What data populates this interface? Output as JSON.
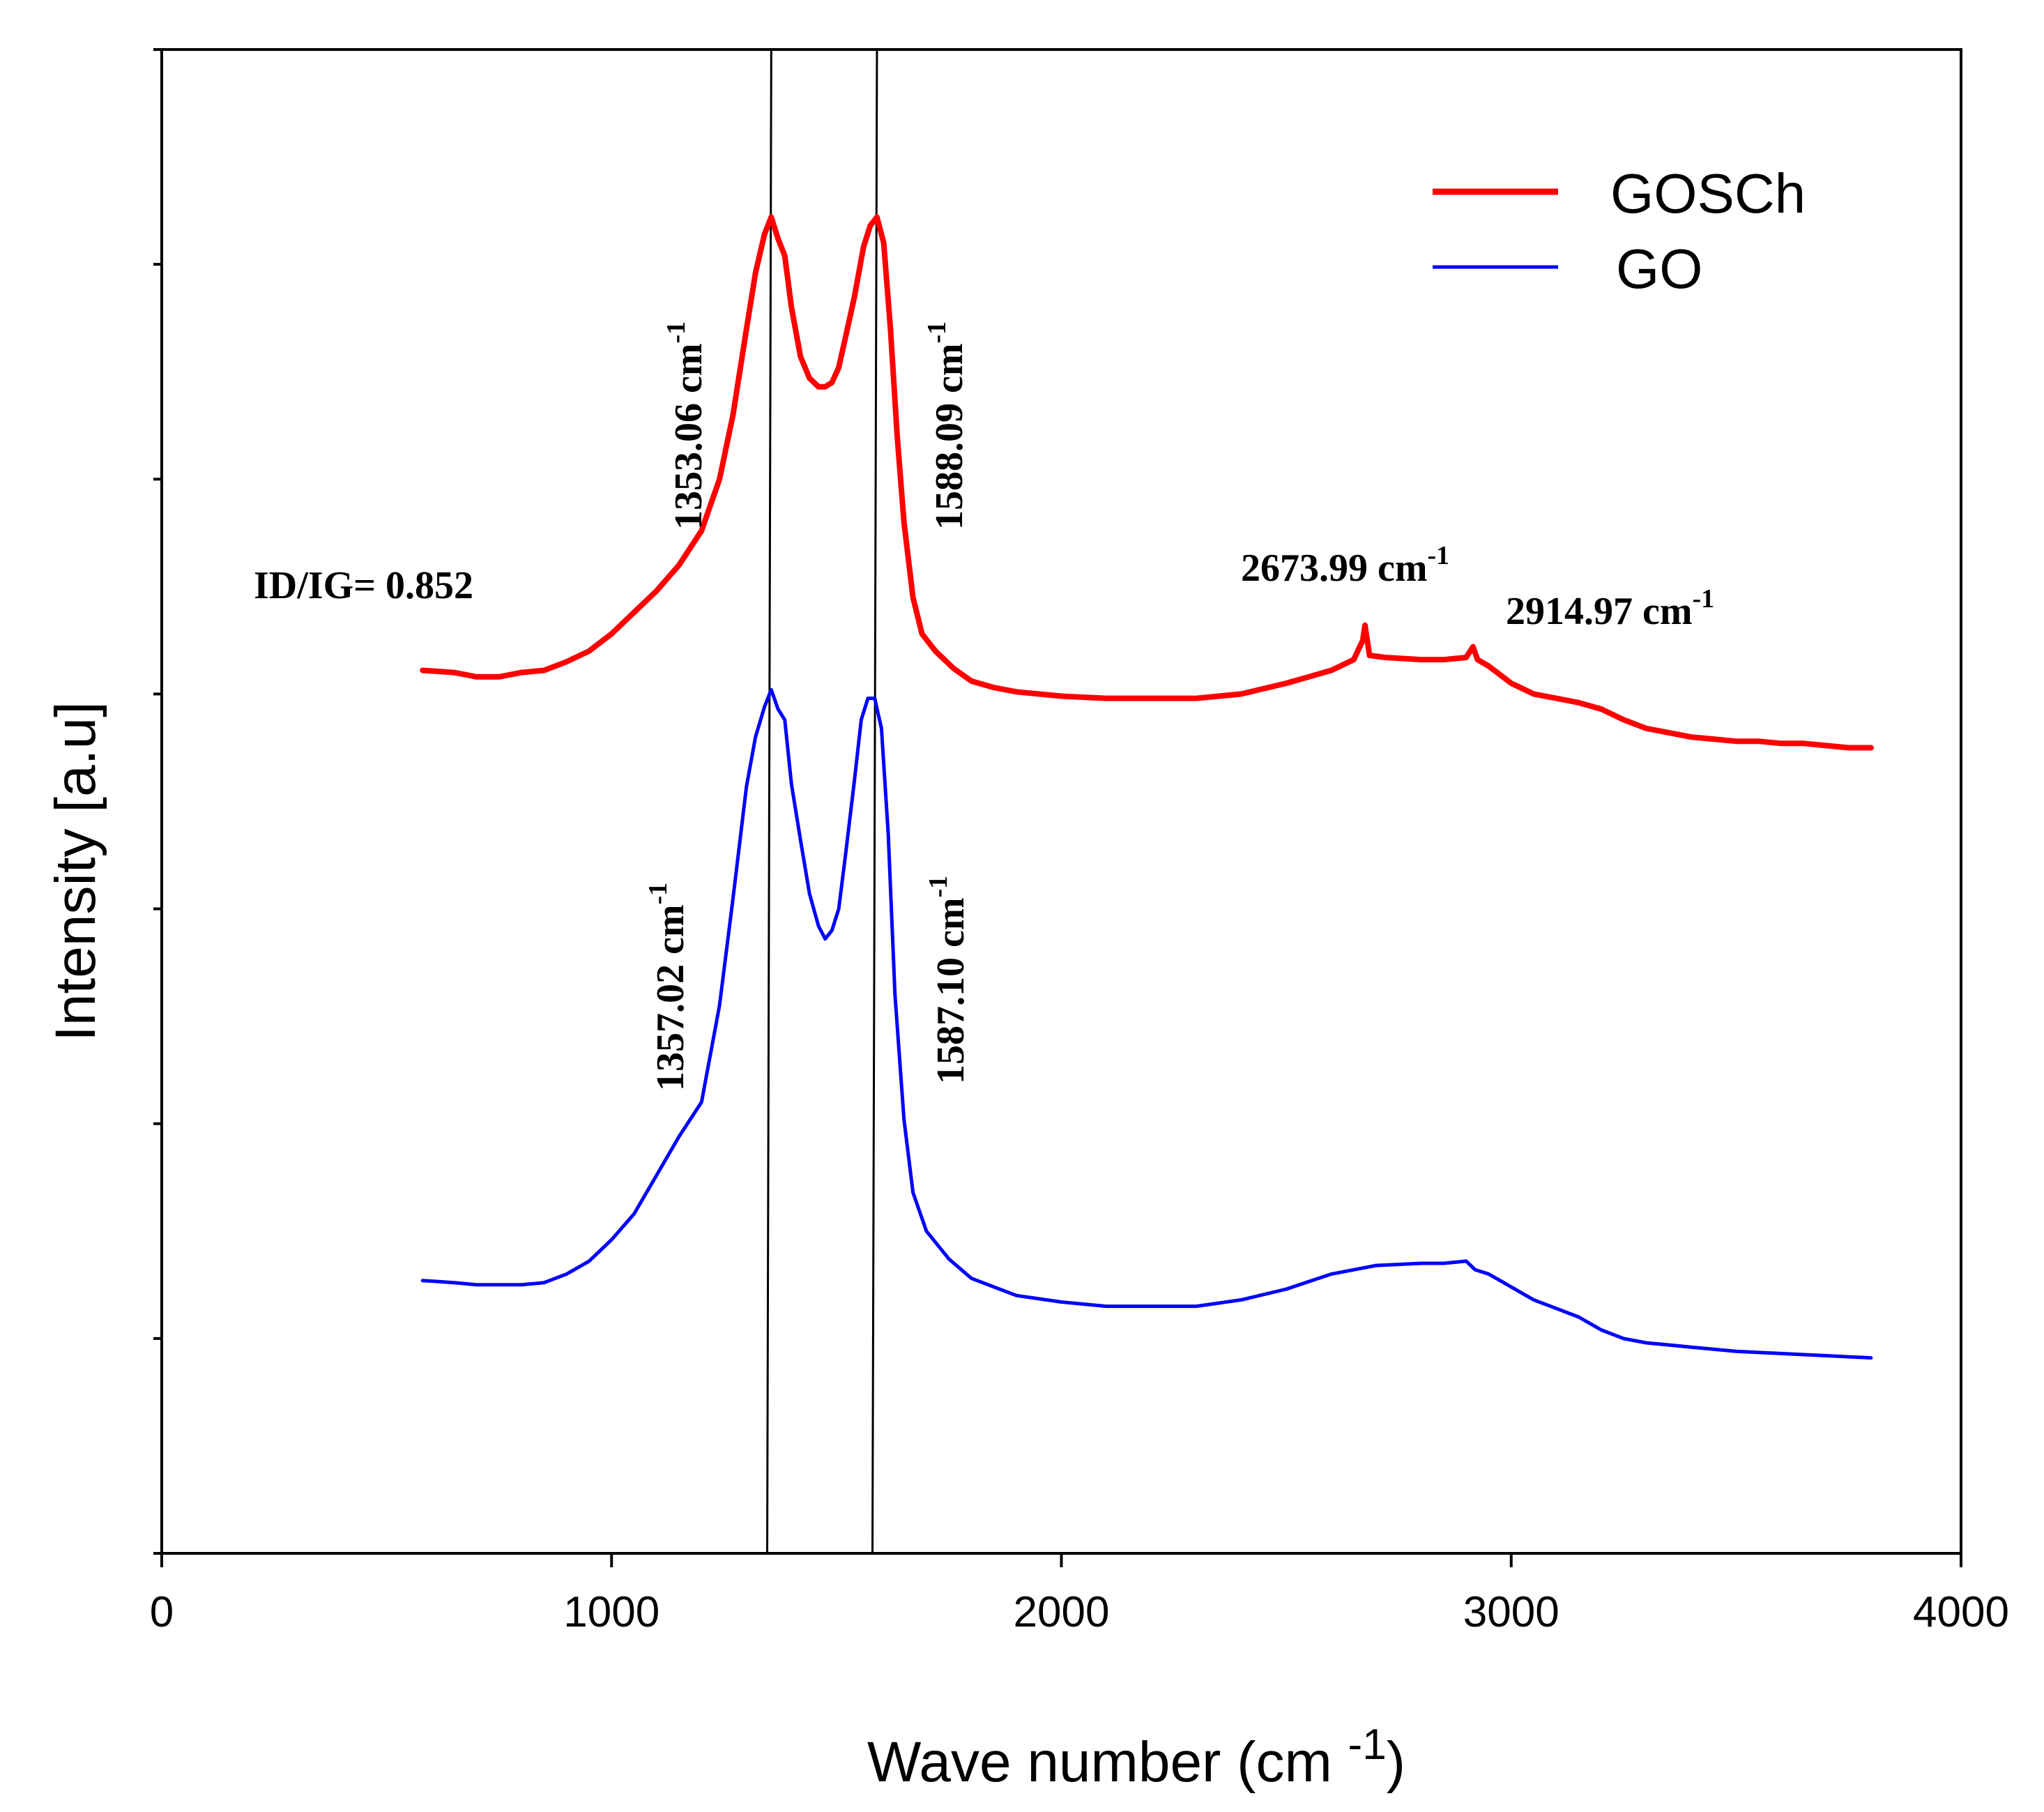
{
  "chart_data": {
    "type": "line",
    "xlabel_main": "Wave number (cm ",
    "xlabel_sup": "-1",
    "xlabel_close": ")",
    "ylabel": "Intensity [a.u]",
    "xlim": [
      0,
      4000
    ],
    "ylim": [
      0,
      7
    ],
    "x_ticks": [
      0,
      1000,
      2000,
      3000,
      4000
    ],
    "x_tick_labels": [
      "0",
      "1000",
      "2000",
      "3000",
      "4000"
    ],
    "y_ticks": [
      0,
      1,
      2,
      3,
      4,
      5,
      6,
      7
    ],
    "show_y_tick_labels": false,
    "grid": false,
    "legend_position": "top-right",
    "series": [
      {
        "name": "GOSCh",
        "color": "#ff0000",
        "x": [
          580,
          650,
          700,
          750,
          800,
          850,
          900,
          950,
          1000,
          1050,
          1100,
          1150,
          1200,
          1240,
          1270,
          1300,
          1320,
          1340,
          1355,
          1370,
          1385,
          1400,
          1420,
          1440,
          1460,
          1475,
          1490,
          1505,
          1520,
          1540,
          1560,
          1575,
          1590,
          1605,
          1620,
          1635,
          1650,
          1670,
          1690,
          1720,
          1760,
          1800,
          1850,
          1900,
          2000,
          2100,
          2200,
          2300,
          2400,
          2500,
          2550,
          2600,
          2650,
          2670,
          2675,
          2685,
          2720,
          2800,
          2850,
          2900,
          2915,
          2925,
          2950,
          3000,
          3050,
          3100,
          3150,
          3200,
          3250,
          3300,
          3350,
          3400,
          3450,
          3500,
          3550,
          3600,
          3650,
          3700,
          3750,
          3800
        ],
        "y": [
          4.11,
          4.1,
          4.08,
          4.08,
          4.1,
          4.11,
          4.15,
          4.2,
          4.28,
          4.38,
          4.48,
          4.6,
          4.76,
          5.0,
          5.3,
          5.7,
          5.96,
          6.14,
          6.22,
          6.12,
          6.04,
          5.8,
          5.57,
          5.47,
          5.43,
          5.43,
          5.45,
          5.52,
          5.66,
          5.85,
          6.08,
          6.18,
          6.22,
          6.1,
          5.7,
          5.2,
          4.8,
          4.45,
          4.28,
          4.2,
          4.12,
          4.06,
          4.03,
          4.01,
          3.99,
          3.98,
          3.98,
          3.98,
          4.0,
          4.05,
          4.08,
          4.11,
          4.16,
          4.25,
          4.32,
          4.18,
          4.17,
          4.16,
          4.16,
          4.17,
          4.22,
          4.16,
          4.13,
          4.05,
          4.0,
          3.98,
          3.96,
          3.93,
          3.88,
          3.84,
          3.82,
          3.8,
          3.79,
          3.78,
          3.78,
          3.77,
          3.77,
          3.76,
          3.75,
          3.75
        ]
      },
      {
        "name": "GO",
        "color": "#0000ff",
        "x": [
          580,
          650,
          700,
          750,
          800,
          850,
          900,
          950,
          1000,
          1050,
          1100,
          1150,
          1200,
          1240,
          1270,
          1300,
          1320,
          1340,
          1355,
          1370,
          1385,
          1400,
          1420,
          1440,
          1460,
          1475,
          1490,
          1505,
          1520,
          1540,
          1555,
          1570,
          1585,
          1600,
          1615,
          1630,
          1650,
          1670,
          1700,
          1750,
          1800,
          1900,
          2000,
          2100,
          2200,
          2300,
          2400,
          2500,
          2600,
          2700,
          2800,
          2850,
          2900,
          2920,
          2950,
          3000,
          3050,
          3100,
          3150,
          3200,
          3250,
          3300,
          3400,
          3500,
          3600,
          3700,
          3800
        ],
        "y": [
          1.27,
          1.26,
          1.25,
          1.25,
          1.25,
          1.26,
          1.3,
          1.36,
          1.46,
          1.58,
          1.76,
          1.94,
          2.1,
          2.55,
          3.05,
          3.57,
          3.8,
          3.94,
          4.02,
          3.93,
          3.88,
          3.58,
          3.32,
          3.07,
          2.92,
          2.86,
          2.9,
          3.0,
          3.25,
          3.6,
          3.88,
          3.98,
          3.98,
          3.84,
          3.35,
          2.6,
          2.02,
          1.68,
          1.5,
          1.37,
          1.28,
          1.2,
          1.17,
          1.15,
          1.15,
          1.15,
          1.18,
          1.23,
          1.3,
          1.34,
          1.35,
          1.35,
          1.36,
          1.32,
          1.3,
          1.24,
          1.18,
          1.14,
          1.1,
          1.04,
          1.0,
          0.98,
          0.96,
          0.94,
          0.93,
          0.92,
          0.91
        ]
      }
    ],
    "vertical_lines": [
      {
        "x_top": 1355,
        "x_bottom": 1346
      },
      {
        "x_top": 1590,
        "x_bottom": 1580
      }
    ],
    "annotations": {
      "gosch_d": {
        "value": "1353.06 cm",
        "sup": "-1"
      },
      "gosch_g": {
        "value": "1588.09 cm",
        "sup": "-1"
      },
      "go_d": {
        "value": "1357.02 cm",
        "sup": "-1"
      },
      "go_g": {
        "value": "1587.10 cm",
        "sup": "-1"
      },
      "peak_2d": {
        "value": "2673.99 cm",
        "sup": "-1"
      },
      "peak_2g": {
        "value": "2914.97 cm",
        "sup": "-1"
      },
      "ratio": {
        "value": "ID/IG= 0.852"
      }
    }
  }
}
